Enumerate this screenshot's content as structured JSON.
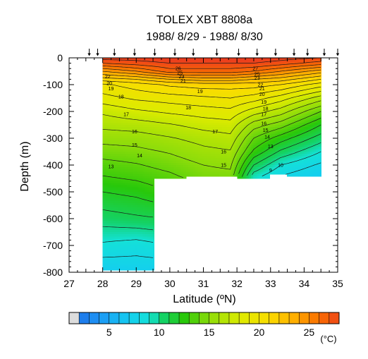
{
  "chart_data": {
    "type": "heatmap",
    "title": "TOLEX XBT 8808a",
    "subtitle": "1988/ 8/29 - 1988/ 8/30",
    "xlabel": "Latitude (ºN)",
    "ylabel": "Depth (m)",
    "xlim": [
      27,
      35
    ],
    "ylim": [
      -800,
      0
    ],
    "x_ticks": [
      "27",
      "28",
      "29",
      "30",
      "31",
      "32",
      "33",
      "34",
      "35"
    ],
    "y_ticks": [
      "0",
      "-100",
      "-200",
      "-300",
      "-400",
      "-500",
      "-600",
      "-700",
      "-800"
    ],
    "stations_lat": [
      27.6,
      27.85,
      28.35,
      28.95,
      29.55,
      30.15,
      30.7,
      31.4,
      32.05,
      32.6,
      33.15,
      33.7,
      34.1,
      34.6,
      35.0
    ],
    "colorbar": {
      "ticks": [
        "5",
        "10",
        "15",
        "20",
        "25"
      ],
      "unit": "(°C)",
      "min": 2,
      "max": 28,
      "step": 1
    },
    "contour_labels": [
      {
        "lat": 28.15,
        "depth": -70,
        "value": "22"
      },
      {
        "lat": 28.2,
        "depth": -95,
        "value": "20"
      },
      {
        "lat": 28.25,
        "depth": -115,
        "value": "19"
      },
      {
        "lat": 28.55,
        "depth": -145,
        "value": "18"
      },
      {
        "lat": 28.7,
        "depth": -210,
        "value": "17"
      },
      {
        "lat": 28.95,
        "depth": -275,
        "value": "16"
      },
      {
        "lat": 28.95,
        "depth": -325,
        "value": "15"
      },
      {
        "lat": 29.1,
        "depth": -365,
        "value": "14"
      },
      {
        "lat": 28.25,
        "depth": -405,
        "value": "13"
      },
      {
        "lat": 30.25,
        "depth": -40,
        "value": "26"
      },
      {
        "lat": 30.3,
        "depth": -55,
        "value": "25"
      },
      {
        "lat": 30.35,
        "depth": -70,
        "value": "23"
      },
      {
        "lat": 30.4,
        "depth": -85,
        "value": "21"
      },
      {
        "lat": 30.9,
        "depth": -125,
        "value": "19"
      },
      {
        "lat": 30.55,
        "depth": -185,
        "value": "18"
      },
      {
        "lat": 31.35,
        "depth": -275,
        "value": "17"
      },
      {
        "lat": 31.6,
        "depth": -350,
        "value": "16"
      },
      {
        "lat": 31.6,
        "depth": -400,
        "value": "15"
      },
      {
        "lat": 32.55,
        "depth": -40,
        "value": "27"
      },
      {
        "lat": 32.6,
        "depth": -60,
        "value": "25"
      },
      {
        "lat": 32.6,
        "depth": -75,
        "value": "23"
      },
      {
        "lat": 32.7,
        "depth": -100,
        "value": "22"
      },
      {
        "lat": 32.75,
        "depth": -115,
        "value": "21"
      },
      {
        "lat": 32.75,
        "depth": -135,
        "value": "20"
      },
      {
        "lat": 32.8,
        "depth": -165,
        "value": "19"
      },
      {
        "lat": 32.85,
        "depth": -190,
        "value": "18"
      },
      {
        "lat": 32.8,
        "depth": -210,
        "value": "17"
      },
      {
        "lat": 32.8,
        "depth": -245,
        "value": "16"
      },
      {
        "lat": 32.85,
        "depth": -270,
        "value": "15"
      },
      {
        "lat": 32.9,
        "depth": -295,
        "value": "14"
      },
      {
        "lat": 33.0,
        "depth": -330,
        "value": "13"
      },
      {
        "lat": 33.3,
        "depth": -400,
        "value": "10"
      },
      {
        "lat": 33.0,
        "depth": -420,
        "value": "9"
      }
    ]
  }
}
